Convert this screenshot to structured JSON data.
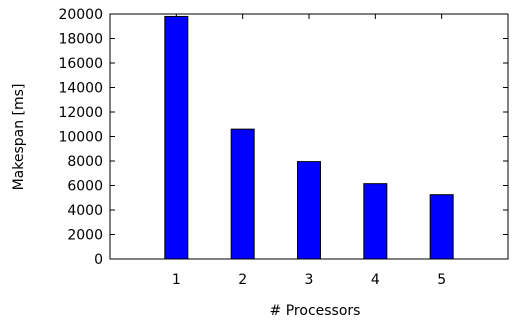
{
  "chart_data": {
    "type": "bar",
    "categories": [
      "1",
      "2",
      "3",
      "4",
      "5"
    ],
    "values": [
      19800,
      10600,
      7950,
      6150,
      5250
    ],
    "xlabel": "# Processors",
    "ylabel": "Makespan [ms]",
    "ylim": [
      0,
      20000
    ],
    "yticks": [
      "0",
      "2000",
      "4000",
      "6000",
      "8000",
      "10000",
      "12000",
      "14000",
      "16000",
      "18000",
      "20000"
    ],
    "grid": false,
    "legend": "none",
    "colors": {
      "bar_fill": "#0000ff",
      "bar_stroke": "#000000",
      "axis": "#000000"
    }
  }
}
